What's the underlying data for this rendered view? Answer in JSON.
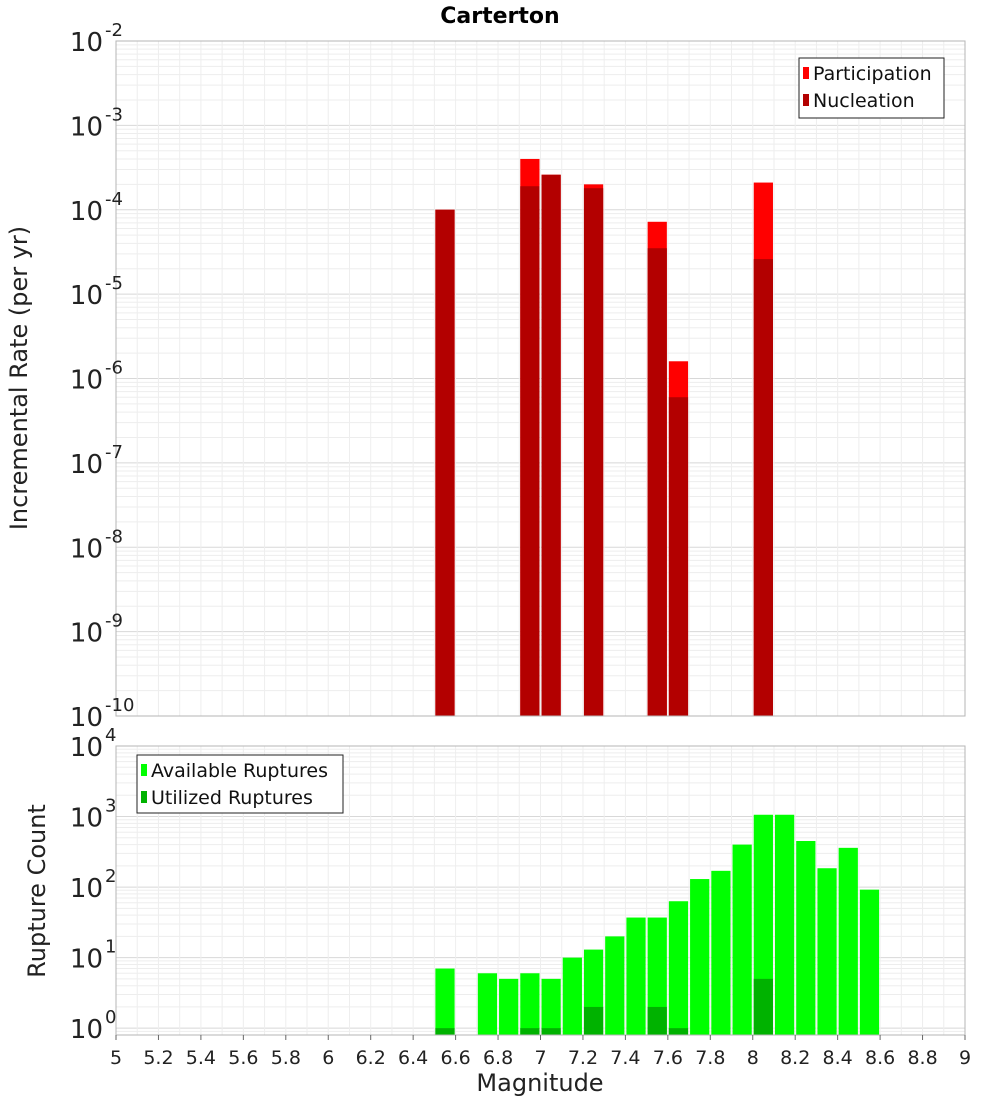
{
  "chart_data": {
    "title": "Carterton",
    "xlabel": "Magnitude",
    "xlim": [
      5,
      9
    ],
    "xticks": [
      5,
      5.2,
      5.4,
      5.6,
      5.8,
      6,
      6.2,
      6.4,
      6.6,
      6.8,
      7,
      7.2,
      7.4,
      7.6,
      7.8,
      8,
      8.2,
      8.4,
      8.6,
      8.8,
      9
    ],
    "xtick_labels": [
      "5",
      "5.2",
      "5.4",
      "5.6",
      "5.8",
      "6",
      "6.2",
      "6.4",
      "6.6",
      "6.8",
      "7",
      "7.2",
      "7.4",
      "7.6",
      "7.8",
      "8",
      "8.2",
      "8.4",
      "8.6",
      "8.8",
      "9"
    ],
    "bin_width": 0.1,
    "panels": [
      {
        "type": "bar",
        "ylabel": "Incremental Rate (per yr)",
        "yscale": "log",
        "ylim": [
          1e-10,
          0.01
        ],
        "ytick_exponents": [
          -10,
          -9,
          -8,
          -7,
          -6,
          -5,
          -4,
          -3,
          -2
        ],
        "grid": true,
        "legend_position": "top-right",
        "series": [
          {
            "name": "Participation",
            "color": "#ff0000",
            "points": [
              [
                6.55,
                0.0001
              ],
              [
                6.95,
                0.0004
              ],
              [
                7.05,
                0.00026
              ],
              [
                7.25,
                0.0002
              ],
              [
                7.55,
                7.2e-05
              ],
              [
                7.65,
                1.6e-06
              ],
              [
                8.05,
                0.00021
              ]
            ]
          },
          {
            "name": "Nucleation",
            "color": "#b30000",
            "points": [
              [
                6.55,
                0.0001
              ],
              [
                6.95,
                0.00019
              ],
              [
                7.05,
                0.00026
              ],
              [
                7.25,
                0.00018
              ],
              [
                7.55,
                3.5e-05
              ],
              [
                7.65,
                6e-07
              ],
              [
                8.05,
                2.6e-05
              ]
            ]
          }
        ]
      },
      {
        "type": "bar",
        "ylabel": "Rupture Count",
        "yscale": "log",
        "ylim": [
          0.8,
          10000
        ],
        "ytick_exponents": [
          0,
          1,
          2,
          3,
          4
        ],
        "grid": true,
        "legend_position": "top-left",
        "series": [
          {
            "name": "Available Ruptures",
            "color": "#00ff00",
            "points": [
              [
                6.55,
                7
              ],
              [
                6.75,
                6
              ],
              [
                6.85,
                5
              ],
              [
                6.95,
                6
              ],
              [
                7.05,
                5
              ],
              [
                7.15,
                10
              ],
              [
                7.25,
                13
              ],
              [
                7.35,
                20
              ],
              [
                7.45,
                37
              ],
              [
                7.55,
                37
              ],
              [
                7.65,
                63
              ],
              [
                7.75,
                130
              ],
              [
                7.85,
                170
              ],
              [
                7.95,
                400
              ],
              [
                8.05,
                1060
              ],
              [
                8.15,
                1060
              ],
              [
                8.25,
                450
              ],
              [
                8.35,
                185
              ],
              [
                8.45,
                360
              ],
              [
                8.55,
                92
              ]
            ]
          },
          {
            "name": "Utilized Ruptures",
            "color": "#00b200",
            "points": [
              [
                6.55,
                1
              ],
              [
                6.95,
                1
              ],
              [
                7.05,
                1
              ],
              [
                7.25,
                2
              ],
              [
                7.55,
                2
              ],
              [
                7.65,
                1
              ],
              [
                8.05,
                5
              ]
            ]
          }
        ]
      }
    ]
  }
}
